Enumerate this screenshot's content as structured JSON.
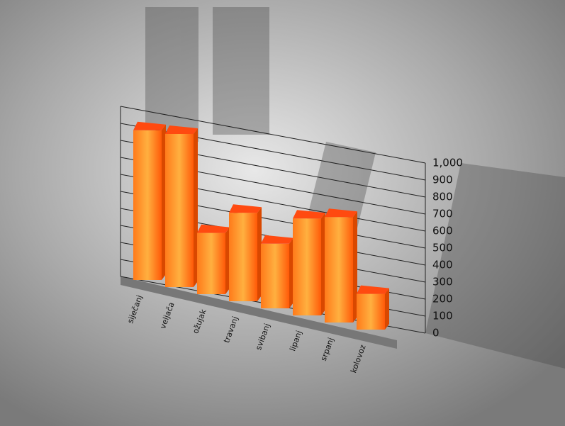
{
  "chart_data": {
    "type": "bar3d",
    "categories": [
      "siječanj",
      "veljača",
      "ožujak",
      "travanj",
      "svibanj",
      "lipanj",
      "srpanj",
      "kolovoz"
    ],
    "values": [
      880,
      900,
      360,
      520,
      380,
      570,
      620,
      210
    ],
    "color": "#ff6a10",
    "ylim": [
      0,
      1000
    ],
    "yticks": [
      0,
      100,
      200,
      300,
      400,
      500,
      600,
      700,
      800,
      900,
      {
        "value": 1000,
        "label": "1,000"
      }
    ],
    "grid": true
  }
}
